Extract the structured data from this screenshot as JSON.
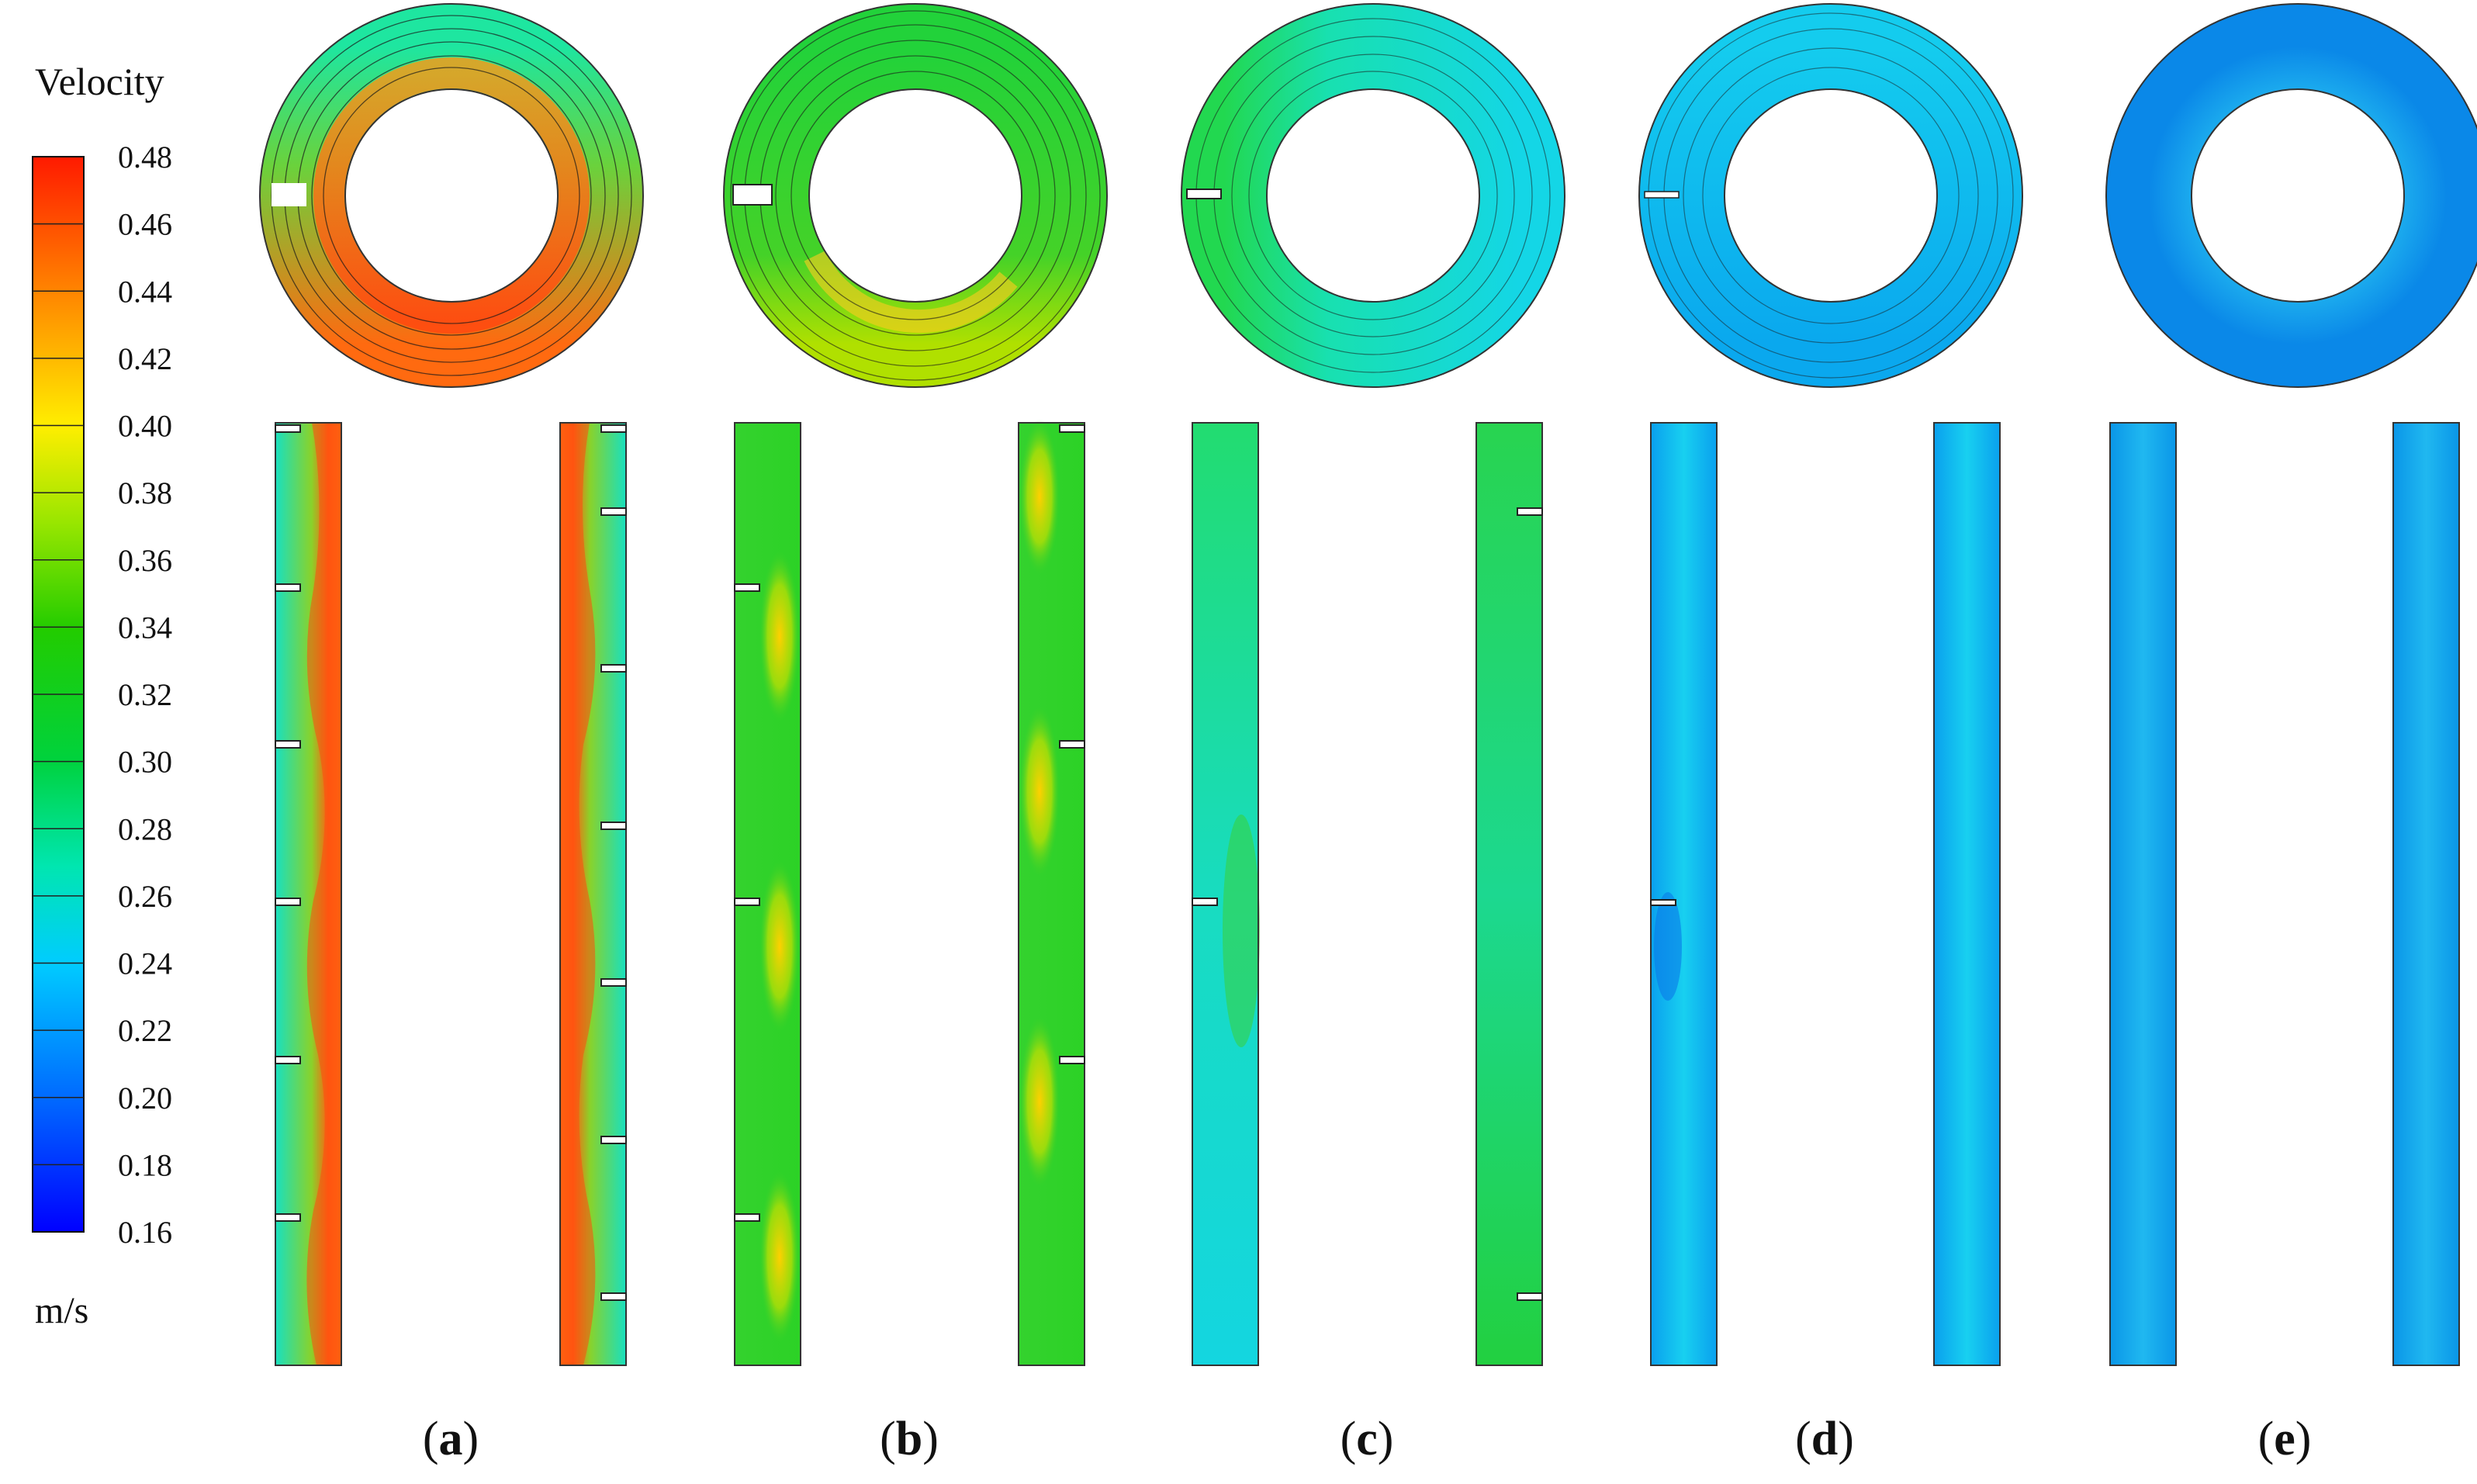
{
  "legend": {
    "title": "Velocity",
    "unit": "m/s",
    "ticks": [
      "0.48",
      "0.46",
      "0.44",
      "0.42",
      "0.40",
      "0.38",
      "0.36",
      "0.34",
      "0.32",
      "0.30",
      "0.28",
      "0.26",
      "0.24",
      "0.22",
      "0.20",
      "0.18",
      "0.16"
    ],
    "range": [
      0.16,
      0.48
    ],
    "colors": [
      "#0000ff",
      "#0066ff",
      "#00ccff",
      "#00e69a",
      "#00d21e",
      "#3ccf00",
      "#ccff00",
      "#ffd200",
      "#ff8000",
      "#ff0000"
    ]
  },
  "panels": [
    {
      "label_open": "(",
      "label_letter": "a",
      "label_close": ")",
      "baffles": "single-notch, baffles both walls",
      "flow": "high (orange/red)"
    },
    {
      "label_open": "(",
      "label_letter": "b",
      "label_close": ")",
      "baffles": "single-notch, baffles both walls",
      "flow": "moderate (green/yellow)"
    },
    {
      "label_open": "(",
      "label_letter": "c",
      "label_close": ")",
      "baffles": "single-notch, sparse baffles",
      "flow": "lower (green/cyan)"
    },
    {
      "label_open": "(",
      "label_letter": "d",
      "label_close": ")",
      "baffles": "single baffle",
      "flow": "low (cyan/blue)"
    },
    {
      "label_open": "(",
      "label_letter": "e",
      "label_close": ")",
      "baffles": "none",
      "flow": "lowest (blue)"
    }
  ],
  "colors": {
    "annulus_outline": "#222222",
    "streamline": "#1a1a1a"
  }
}
